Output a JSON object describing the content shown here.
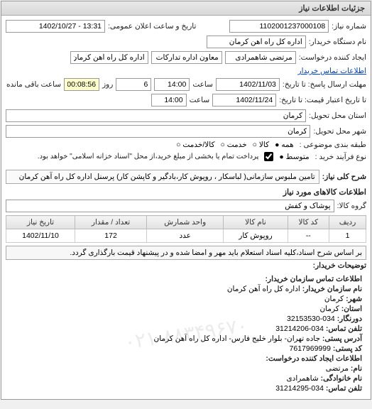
{
  "panel_title": "جزئیات اطلاعات نیاز",
  "fields": {
    "request_no_label": "شماره نیاز:",
    "request_no": "1102001237000108",
    "public_datetime_label": "تاریخ و ساعت اعلان عمومی:",
    "public_datetime": "13:31 - 1402/10/27",
    "buyer_org_label": "نام دستگاه خریدار:",
    "buyer_org": "اداره کل راه آهن کرمان",
    "requester_label": "ایجاد کننده درخواست:",
    "requester_name": "مرتضی شاهمرادی",
    "requester_role": "معاون اداره تدارکات",
    "requester_unit": "اداره کل راه آهن کرمان",
    "buyer_contact_link": "اطلاعات تماس خریدار",
    "deadline_label": "مهلت ارسال پاسخ: تا تاریخ:",
    "deadline_date": "1402/11/03",
    "time_label": "ساعت",
    "deadline_time": "14:00",
    "day_count": "6",
    "day_label": "روز",
    "remaining_label": "ساعت باقی مانده",
    "remaining_time": "00:08:56",
    "price_valid_label": "تا تاریخ اعتبار قیمت: تا تاریخ:",
    "price_valid_date": "1402/11/24",
    "price_valid_time": "14:00",
    "delivery_province_label": "استان محل تحویل:",
    "delivery_province": "کرمان",
    "delivery_city_label": "شهر محل تحویل:",
    "delivery_city": "کرمان",
    "topic_group_label": "طبقه بندی موضوعی :",
    "topic_all": "همه ●",
    "topic_goods": "کالا ○",
    "topic_service": "خدمت ○",
    "topic_mixed": "کالا/خدمت ○",
    "buy_process_label": "نوع فرآیند خرید :",
    "buy_process_1": "متوسط ●",
    "buy_process_note": "پرداخت تمام یا بخشی از مبلغ خرید،از محل \"اسناد خزانه اسلامی\" خواهد بود.",
    "summary_label": "شرح کلی نیاز:",
    "summary": "تامین ملبوس سازمانی( لباسکار ، روپوش کار،بادگیر و کاپشن کار) پرسنل اداره کل راه آهن کرمان",
    "goods_title": "اطلاعات کالاهای مورد نیاز",
    "goods_group_label": "گروه کالا:",
    "goods_group": "پوشاک و کفش",
    "note_text": "بر اساس شرح اسناد،کلیه اسناد استعلام باید مهر و امضا شده و در پیشنهاد قیمت بارگذاری گردد.",
    "buyer_notes_label": "توضیحات خریدار:",
    "buyer_contact_title": "اطلاعات تماس سازمان خریدار:",
    "watermark": "۰۲۱-۸۸۳۴۹۶۷۰"
  },
  "table": {
    "columns": [
      "ردیف",
      "کد کالا",
      "نام کالا",
      "واحد شمارش",
      "تعداد / مقدار",
      "تاریخ نیاز"
    ],
    "rows": [
      [
        "1",
        "--",
        "روپوش کار",
        "عدد",
        "172",
        "1402/11/10"
      ]
    ]
  },
  "contact": {
    "org_label": "نام سازمان خریدار:",
    "org": "اداره کل راه آهن کرمان",
    "city_label": "شهر:",
    "city": "کرمان",
    "province_label": "استان:",
    "province": "کرمان",
    "fax_label": "دورنگار:",
    "fax": "034-32153530",
    "phone_label": "تلفن تماس:",
    "phone": "034-31214206",
    "address_label": "آدرس پستی:",
    "address": "جاده تهران- بلوار خلیج فارس- اداره کل راه آهن کرمان",
    "postal_label": "کد پستی:",
    "postal": "7617969999",
    "requester_info_title": "اطلاعات ایجاد کننده درخواست:",
    "fname_label": "نام:",
    "fname": "مرتضی",
    "lname_label": "نام خانوادگی:",
    "lname": "شاهمرادی",
    "rphone_label": "تلفن تماس:",
    "rphone": "034-31214295"
  }
}
